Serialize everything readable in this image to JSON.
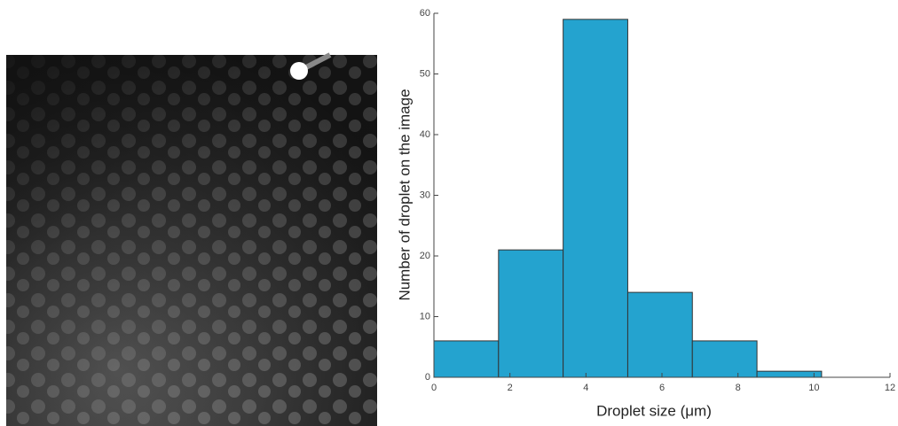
{
  "chart_data": {
    "type": "histogram",
    "x_label": "Droplet size (μm)",
    "y_label": "Number of droplet on the image",
    "bins": [
      0,
      1.7,
      3.4,
      5.1,
      6.8,
      8.5,
      10.2
    ],
    "values": [
      6,
      21,
      59,
      14,
      6,
      1
    ],
    "color": "#24a3cf",
    "xlim": [
      0,
      12
    ],
    "xticks": [
      0,
      2,
      4,
      6,
      8,
      10,
      12
    ],
    "ylim": [
      0,
      60
    ],
    "yticks": [
      0,
      10,
      20,
      30,
      40,
      50,
      60
    ]
  }
}
